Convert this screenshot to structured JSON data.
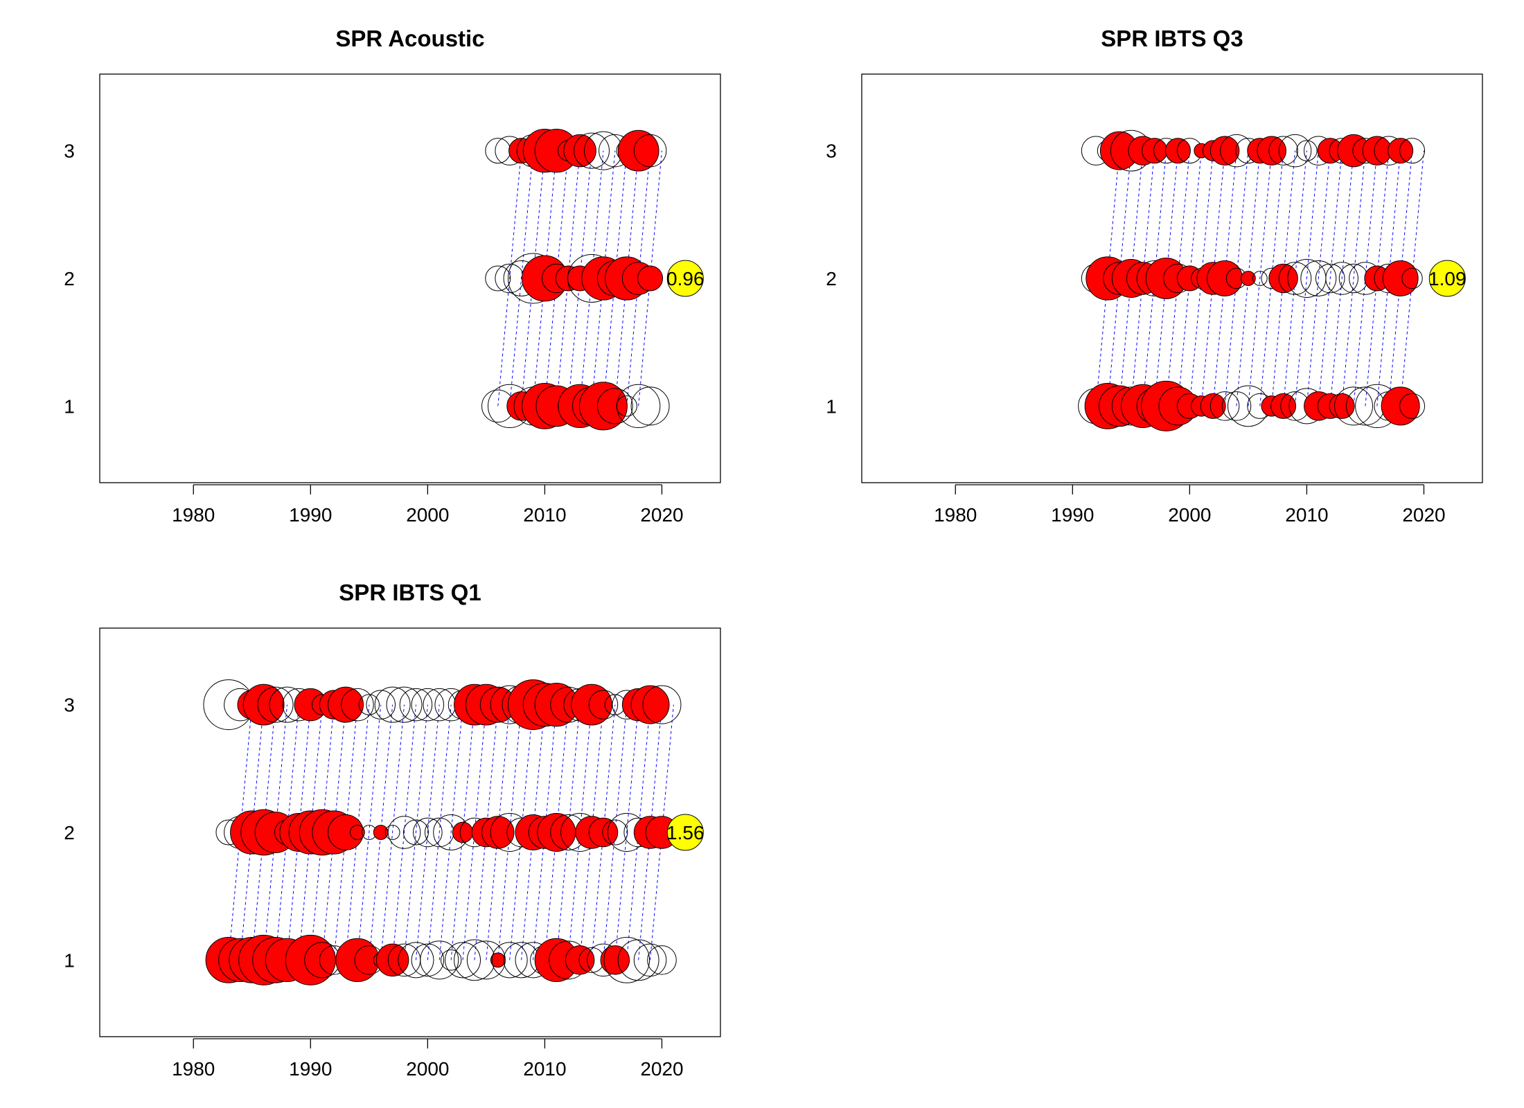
{
  "chart_data": [
    {
      "type": "scatter",
      "title": "SPR Acoustic",
      "xlabel": "",
      "ylabel": "",
      "xlim": [
        1972,
        2025
      ],
      "ylim": [
        0.4,
        3.6
      ],
      "xticks": [
        1980,
        1990,
        2000,
        2010,
        2020
      ],
      "yticks": [
        1,
        2,
        3
      ],
      "ages": [
        1,
        2,
        3
      ],
      "years": [
        2006,
        2007,
        2008,
        2009,
        2010,
        2011,
        2012,
        2013,
        2014,
        2015,
        2016,
        2017,
        2018,
        2019
      ],
      "residuals": [
        [
          -0.5,
          -0.9,
          0.4,
          -0.7,
          1.0,
          0.8,
          0.2,
          0.9,
          -0.7,
          1.1,
          -0.6,
          -0.2,
          -0.9,
          -0.7
        ],
        [
          -0.3,
          -0.4,
          -0.6,
          -1.2,
          1.0,
          0.4,
          0.3,
          0.3,
          -1.1,
          0.9,
          -0.6,
          0.9,
          0.5,
          0.3
        ],
        [
          -0.3,
          -0.4,
          0.3,
          -0.5,
          0.9,
          0.9,
          -0.2,
          0.5,
          -0.6,
          -0.7,
          -0.5,
          -0.2,
          0.8,
          -0.5
        ]
      ],
      "overlay": {
        "x": 2022,
        "y": 2,
        "label": "0.96"
      },
      "colors": {
        "positive": "#ff0000",
        "negative": "none",
        "link": "#0000ff",
        "overlay": "#ffff00"
      }
    },
    {
      "type": "scatter",
      "title": "SPR IBTS Q3",
      "xlabel": "",
      "ylabel": "",
      "xlim": [
        1972,
        2025
      ],
      "ylim": [
        0.4,
        3.6
      ],
      "xticks": [
        1980,
        1990,
        2000,
        2010,
        2020
      ],
      "yticks": [
        1,
        2,
        3
      ],
      "ages": [
        1,
        2,
        3
      ],
      "years": [
        1992,
        1993,
        1994,
        1995,
        1996,
        1997,
        1998,
        1999,
        2000,
        2001,
        2002,
        2003,
        2004,
        2005,
        2006,
        2007,
        2008,
        2009,
        2010,
        2011,
        2012,
        2013,
        2014,
        2015,
        2016,
        2017,
        2018,
        2019
      ],
      "residuals": [
        [
          -0.6,
          1.0,
          0.8,
          -0.7,
          0.9,
          -0.6,
          1.2,
          0.7,
          0.3,
          0.2,
          0.3,
          -0.4,
          -0.4,
          -0.8,
          -0.3,
          0.2,
          0.3,
          -0.4,
          -0.6,
          0.4,
          0.3,
          0.3,
          -0.7,
          -0.7,
          -0.9,
          -0.4,
          0.7,
          -0.3
        ],
        [
          -0.4,
          0.9,
          0.5,
          0.7,
          0.5,
          -0.6,
          0.8,
          -0.4,
          0.3,
          -0.2,
          0.5,
          0.6,
          -0.2,
          0.1,
          -0.1,
          -0.2,
          0.4,
          -0.5,
          -0.7,
          -0.6,
          -0.4,
          -0.5,
          -0.4,
          -0.5,
          0.3,
          -0.4,
          0.6,
          -0.2
        ],
        [
          -0.4,
          -0.2,
          0.7,
          -0.8,
          0.4,
          0.3,
          -0.3,
          0.3,
          -0.3,
          0.1,
          0.2,
          0.4,
          -0.5,
          -0.3,
          0.3,
          0.4,
          -0.4,
          -0.5,
          -0.2,
          -0.4,
          0.3,
          -0.3,
          0.5,
          -0.3,
          0.4,
          -0.4,
          0.3,
          -0.3
        ]
      ],
      "overlay": {
        "x": 2022,
        "y": 2,
        "label": "1.09"
      },
      "colors": {
        "positive": "#ff0000",
        "negative": "none",
        "link": "#0000ff",
        "overlay": "#ffff00"
      }
    },
    {
      "type": "scatter",
      "title": "SPR IBTS Q1",
      "xlabel": "",
      "ylabel": "",
      "xlim": [
        1972,
        2025
      ],
      "ylim": [
        0.4,
        3.6
      ],
      "xticks": [
        1980,
        1990,
        2000,
        2010,
        2020
      ],
      "yticks": [
        1,
        2,
        3
      ],
      "ages": [
        1,
        2,
        3
      ],
      "years": [
        1983,
        1984,
        1985,
        1986,
        1987,
        1988,
        1989,
        1990,
        1991,
        1992,
        1993,
        1994,
        1995,
        1996,
        1997,
        1998,
        1999,
        2000,
        2001,
        2002,
        2003,
        2004,
        2005,
        2006,
        2007,
        2008,
        2009,
        2010,
        2011,
        2012,
        2013,
        2014,
        2015,
        2016,
        2017,
        2018,
        2019,
        2020
      ],
      "residuals": [
        [
          1.0,
          0.9,
          1.0,
          1.2,
          1.0,
          0.9,
          -0.1,
          1.2,
          -0.6,
          -0.4,
          -0.1,
          0.9,
          -0.4,
          -0.1,
          0.5,
          -0.5,
          -0.6,
          -0.5,
          -0.7,
          -0.2,
          -0.6,
          -0.8,
          -0.7,
          0.1,
          -0.6,
          -0.6,
          -0.6,
          -0.4,
          0.9,
          -0.7,
          0.4,
          -0.3,
          -0.5,
          0.4,
          -1.0,
          -0.8,
          -0.5,
          -0.4
        ],
        [
          -0.3,
          -0.5,
          0.9,
          1.0,
          0.8,
          -0.3,
          0.7,
          0.9,
          1.0,
          0.9,
          0.6,
          0.1,
          -0.1,
          0.1,
          -0.1,
          -0.5,
          -0.3,
          -0.4,
          -0.4,
          -0.6,
          0.2,
          -0.4,
          0.4,
          0.5,
          -0.7,
          -0.4,
          0.6,
          0.5,
          0.7,
          -0.6,
          -0.7,
          0.5,
          0.4,
          -0.3,
          -0.7,
          -0.4,
          0.5,
          0.5
        ],
        [
          -1.2,
          -0.5,
          0.4,
          0.8,
          -0.6,
          -0.6,
          -0.5,
          0.5,
          -0.2,
          0.4,
          0.6,
          -0.5,
          -0.2,
          -0.4,
          -0.6,
          -0.6,
          -0.5,
          -0.5,
          -0.5,
          -0.5,
          -0.4,
          0.8,
          0.8,
          0.6,
          -0.7,
          -0.7,
          1.2,
          0.9,
          0.9,
          -0.6,
          -0.5,
          0.8,
          -0.4,
          -0.2,
          -0.4,
          0.5,
          0.7,
          -0.7
        ]
      ],
      "overlay": {
        "x": 2022,
        "y": 2,
        "label": "1.56"
      },
      "colors": {
        "positive": "#ff0000",
        "negative": "none",
        "link": "#0000ff",
        "overlay": "#ffff00"
      }
    }
  ]
}
